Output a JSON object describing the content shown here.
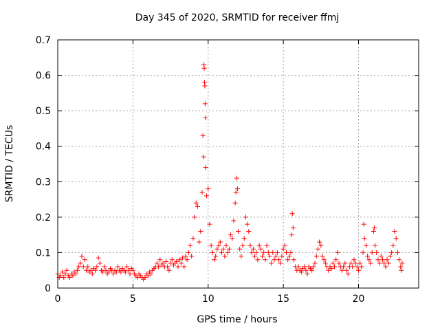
{
  "chart_data": {
    "type": "scatter",
    "title": "Day 345 of 2020, SRMTID for receiver ffmj",
    "xlabel": "GPS time / hours",
    "ylabel": "SRMTID / TECUs",
    "xlim": [
      0,
      24
    ],
    "ylim": [
      0,
      0.7
    ],
    "xticks": [
      0,
      5,
      10,
      15,
      20
    ],
    "yticks": [
      0,
      0.1,
      0.2,
      0.3,
      0.4,
      0.5,
      0.6,
      0.7
    ],
    "xtick_labels": [
      "0",
      "5",
      "10",
      "15",
      "20"
    ],
    "ytick_labels": [
      "0",
      "0.1",
      "0.2",
      "0.3",
      "0.4",
      "0.5",
      "0.6",
      "0.7"
    ],
    "grid": true,
    "marker": "plus",
    "color": "#ff0000",
    "series": [
      {
        "name": "SRMTID",
        "points": [
          [
            0.0,
            0.04
          ],
          [
            0.1,
            0.03
          ],
          [
            0.2,
            0.035
          ],
          [
            0.3,
            0.045
          ],
          [
            0.4,
            0.03
          ],
          [
            0.5,
            0.04
          ],
          [
            0.6,
            0.05
          ],
          [
            0.7,
            0.035
          ],
          [
            0.8,
            0.03
          ],
          [
            0.9,
            0.04
          ],
          [
            1.0,
            0.035
          ],
          [
            1.1,
            0.045
          ],
          [
            1.2,
            0.04
          ],
          [
            1.3,
            0.05
          ],
          [
            1.4,
            0.06
          ],
          [
            1.5,
            0.07
          ],
          [
            1.6,
            0.09
          ],
          [
            1.7,
            0.06
          ],
          [
            1.8,
            0.08
          ],
          [
            1.9,
            0.05
          ],
          [
            2.0,
            0.06
          ],
          [
            2.1,
            0.045
          ],
          [
            2.2,
            0.05
          ],
          [
            2.3,
            0.04
          ],
          [
            2.4,
            0.055
          ],
          [
            2.5,
            0.05
          ],
          [
            2.6,
            0.06
          ],
          [
            2.7,
            0.085
          ],
          [
            2.8,
            0.07
          ],
          [
            2.9,
            0.05
          ],
          [
            3.0,
            0.045
          ],
          [
            3.1,
            0.06
          ],
          [
            3.2,
            0.05
          ],
          [
            3.3,
            0.04
          ],
          [
            3.4,
            0.045
          ],
          [
            3.5,
            0.055
          ],
          [
            3.6,
            0.05
          ],
          [
            3.7,
            0.04
          ],
          [
            3.8,
            0.05
          ],
          [
            3.9,
            0.045
          ],
          [
            4.0,
            0.06
          ],
          [
            4.1,
            0.05
          ],
          [
            4.2,
            0.045
          ],
          [
            4.3,
            0.055
          ],
          [
            4.4,
            0.05
          ],
          [
            4.5,
            0.045
          ],
          [
            4.6,
            0.06
          ],
          [
            4.7,
            0.05
          ],
          [
            4.8,
            0.04
          ],
          [
            4.9,
            0.055
          ],
          [
            5.0,
            0.05
          ],
          [
            5.1,
            0.04
          ],
          [
            5.2,
            0.035
          ],
          [
            5.3,
            0.03
          ],
          [
            5.4,
            0.04
          ],
          [
            5.5,
            0.035
          ],
          [
            5.6,
            0.03
          ],
          [
            5.7,
            0.025
          ],
          [
            5.8,
            0.03
          ],
          [
            5.9,
            0.04
          ],
          [
            6.0,
            0.035
          ],
          [
            6.1,
            0.045
          ],
          [
            6.2,
            0.04
          ],
          [
            6.3,
            0.05
          ],
          [
            6.4,
            0.055
          ],
          [
            6.5,
            0.06
          ],
          [
            6.6,
            0.07
          ],
          [
            6.7,
            0.06
          ],
          [
            6.8,
            0.08
          ],
          [
            6.9,
            0.065
          ],
          [
            7.0,
            0.07
          ],
          [
            7.1,
            0.06
          ],
          [
            7.2,
            0.075
          ],
          [
            7.3,
            0.06
          ],
          [
            7.4,
            0.05
          ],
          [
            7.5,
            0.07
          ],
          [
            7.6,
            0.08
          ],
          [
            7.7,
            0.065
          ],
          [
            7.8,
            0.07
          ],
          [
            7.9,
            0.075
          ],
          [
            8.0,
            0.06
          ],
          [
            8.1,
            0.08
          ],
          [
            8.2,
            0.07
          ],
          [
            8.3,
            0.085
          ],
          [
            8.4,
            0.06
          ],
          [
            8.5,
            0.09
          ],
          [
            8.6,
            0.08
          ],
          [
            8.7,
            0.1
          ],
          [
            8.8,
            0.12
          ],
          [
            8.9,
            0.09
          ],
          [
            9.0,
            0.14
          ],
          [
            9.1,
            0.2
          ],
          [
            9.2,
            0.24
          ],
          [
            9.3,
            0.23
          ],
          [
            9.4,
            0.13
          ],
          [
            9.5,
            0.16
          ],
          [
            9.6,
            0.27
          ],
          [
            9.65,
            0.43
          ],
          [
            9.7,
            0.37
          ],
          [
            9.72,
            0.63
          ],
          [
            9.74,
            0.62
          ],
          [
            9.76,
            0.58
          ],
          [
            9.78,
            0.57
          ],
          [
            9.8,
            0.52
          ],
          [
            9.82,
            0.48
          ],
          [
            9.84,
            0.34
          ],
          [
            9.9,
            0.26
          ],
          [
            10.0,
            0.28
          ],
          [
            10.1,
            0.18
          ],
          [
            10.2,
            0.12
          ],
          [
            10.3,
            0.1
          ],
          [
            10.4,
            0.08
          ],
          [
            10.5,
            0.09
          ],
          [
            10.6,
            0.11
          ],
          [
            10.7,
            0.12
          ],
          [
            10.8,
            0.13
          ],
          [
            10.9,
            0.1
          ],
          [
            11.0,
            0.11
          ],
          [
            11.1,
            0.09
          ],
          [
            11.2,
            0.12
          ],
          [
            11.3,
            0.1
          ],
          [
            11.4,
            0.11
          ],
          [
            11.5,
            0.15
          ],
          [
            11.6,
            0.14
          ],
          [
            11.7,
            0.19
          ],
          [
            11.8,
            0.24
          ],
          [
            11.85,
            0.27
          ],
          [
            11.9,
            0.31
          ],
          [
            11.95,
            0.28
          ],
          [
            12.0,
            0.16
          ],
          [
            12.1,
            0.11
          ],
          [
            12.2,
            0.09
          ],
          [
            12.3,
            0.12
          ],
          [
            12.4,
            0.14
          ],
          [
            12.5,
            0.2
          ],
          [
            12.6,
            0.18
          ],
          [
            12.7,
            0.16
          ],
          [
            12.8,
            0.12
          ],
          [
            12.9,
            0.1
          ],
          [
            13.0,
            0.11
          ],
          [
            13.1,
            0.09
          ],
          [
            13.2,
            0.1
          ],
          [
            13.3,
            0.08
          ],
          [
            13.4,
            0.12
          ],
          [
            13.5,
            0.11
          ],
          [
            13.6,
            0.09
          ],
          [
            13.7,
            0.1
          ],
          [
            13.8,
            0.08
          ],
          [
            13.9,
            0.12
          ],
          [
            14.0,
            0.1
          ],
          [
            14.1,
            0.09
          ],
          [
            14.2,
            0.07
          ],
          [
            14.3,
            0.1
          ],
          [
            14.4,
            0.08
          ],
          [
            14.5,
            0.09
          ],
          [
            14.6,
            0.1
          ],
          [
            14.7,
            0.08
          ],
          [
            14.8,
            0.07
          ],
          [
            14.9,
            0.09
          ],
          [
            15.0,
            0.11
          ],
          [
            15.1,
            0.12
          ],
          [
            15.2,
            0.1
          ],
          [
            15.3,
            0.08
          ],
          [
            15.4,
            0.09
          ],
          [
            15.5,
            0.1
          ],
          [
            15.55,
            0.15
          ],
          [
            15.6,
            0.21
          ],
          [
            15.65,
            0.17
          ],
          [
            15.7,
            0.08
          ],
          [
            15.8,
            0.06
          ],
          [
            15.9,
            0.05
          ],
          [
            16.0,
            0.06
          ],
          [
            16.1,
            0.05
          ],
          [
            16.2,
            0.045
          ],
          [
            16.3,
            0.055
          ],
          [
            16.4,
            0.06
          ],
          [
            16.5,
            0.05
          ],
          [
            16.6,
            0.04
          ],
          [
            16.7,
            0.06
          ],
          [
            16.8,
            0.055
          ],
          [
            16.9,
            0.05
          ],
          [
            17.0,
            0.06
          ],
          [
            17.1,
            0.07
          ],
          [
            17.2,
            0.09
          ],
          [
            17.3,
            0.11
          ],
          [
            17.4,
            0.13
          ],
          [
            17.5,
            0.12
          ],
          [
            17.6,
            0.09
          ],
          [
            17.7,
            0.08
          ],
          [
            17.8,
            0.07
          ],
          [
            17.9,
            0.06
          ],
          [
            18.0,
            0.05
          ],
          [
            18.1,
            0.06
          ],
          [
            18.2,
            0.055
          ],
          [
            18.3,
            0.07
          ],
          [
            18.4,
            0.06
          ],
          [
            18.5,
            0.08
          ],
          [
            18.6,
            0.1
          ],
          [
            18.7,
            0.07
          ],
          [
            18.8,
            0.06
          ],
          [
            18.9,
            0.05
          ],
          [
            19.0,
            0.06
          ],
          [
            19.1,
            0.07
          ],
          [
            19.2,
            0.05
          ],
          [
            19.3,
            0.04
          ],
          [
            19.4,
            0.06
          ],
          [
            19.5,
            0.07
          ],
          [
            19.6,
            0.06
          ],
          [
            19.7,
            0.08
          ],
          [
            19.8,
            0.07
          ],
          [
            19.9,
            0.06
          ],
          [
            20.0,
            0.05
          ],
          [
            20.1,
            0.07
          ],
          [
            20.2,
            0.06
          ],
          [
            20.3,
            0.1
          ],
          [
            20.35,
            0.18
          ],
          [
            20.4,
            0.14
          ],
          [
            20.5,
            0.12
          ],
          [
            20.6,
            0.09
          ],
          [
            20.7,
            0.08
          ],
          [
            20.8,
            0.07
          ],
          [
            20.9,
            0.1
          ],
          [
            21.0,
            0.16
          ],
          [
            21.05,
            0.17
          ],
          [
            21.1,
            0.12
          ],
          [
            21.2,
            0.1
          ],
          [
            21.3,
            0.08
          ],
          [
            21.4,
            0.07
          ],
          [
            21.5,
            0.09
          ],
          [
            21.6,
            0.08
          ],
          [
            21.7,
            0.07
          ],
          [
            21.8,
            0.06
          ],
          [
            21.9,
            0.08
          ],
          [
            22.0,
            0.07
          ],
          [
            22.1,
            0.09
          ],
          [
            22.2,
            0.1
          ],
          [
            22.3,
            0.12
          ],
          [
            22.4,
            0.16
          ],
          [
            22.5,
            0.14
          ],
          [
            22.6,
            0.1
          ],
          [
            22.7,
            0.08
          ],
          [
            22.8,
            0.06
          ],
          [
            22.85,
            0.05
          ],
          [
            22.9,
            0.07
          ]
        ]
      }
    ]
  }
}
